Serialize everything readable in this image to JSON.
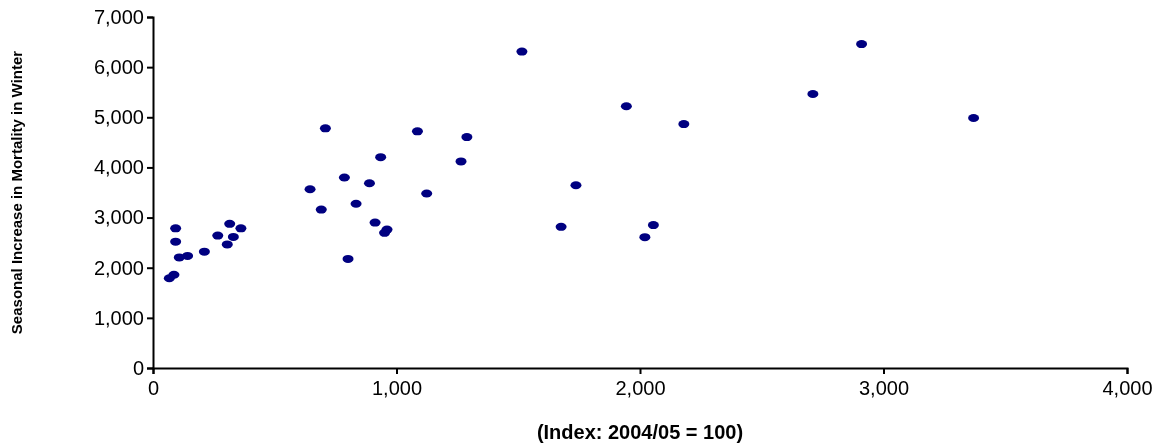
{
  "chart_data": {
    "type": "scatter",
    "xlabel": "(Index: 2004/05 = 100)",
    "ylabel": "Seasonal Increase in Mortality in Winter",
    "marker": "circle",
    "grid": false,
    "xlim": [
      0,
      4000
    ],
    "xticks": [
      {
        "value": 0,
        "label": "0"
      },
      {
        "value": 1000,
        "label": "1,000"
      },
      {
        "value": 2000,
        "label": "2,000"
      },
      {
        "value": 3000,
        "label": "3,000"
      },
      {
        "value": 4000,
        "label": "4,000"
      }
    ],
    "ylim": [
      0,
      7000
    ],
    "yticks": [
      {
        "value": 0,
        "label": "0"
      },
      {
        "value": 1000,
        "label": "1,000"
      },
      {
        "value": 2000,
        "label": "2,000"
      },
      {
        "value": 3000,
        "label": "3,000"
      },
      {
        "value": 4000,
        "label": "4,000"
      },
      {
        "value": 5000,
        "label": "5,000"
      },
      {
        "value": 6000,
        "label": "6,000"
      },
      {
        "value": 7000,
        "label": "7,000"
      }
    ],
    "series": [
      {
        "color": "#000080",
        "x": [
          67,
          86,
          93,
          93,
          108,
          142,
          211,
          266,
          305,
          315,
          330,
          361,
          645,
          691,
          708,
          786,
          801,
          834,
          889,
          912,
          935,
          951,
          961,
          1086,
          1124,
          1265,
          1289,
          1515,
          1676,
          1737,
          1944,
          2020,
          2055,
          2180,
          2710,
          2910,
          3370
        ],
        "values": [
          1790,
          1860,
          2785,
          2520,
          2205,
          2235,
          2320,
          2640,
          2465,
          2875,
          2615,
          2785,
          3565,
          3160,
          4780,
          3800,
          2175,
          3275,
          3685,
          2900,
          4205,
          2695,
          2760,
          4720,
          3480,
          4120,
          4605,
          6310,
          2815,
          3645,
          5220,
          2610,
          2850,
          4865,
          5465,
          6460,
          4985
        ]
      }
    ]
  }
}
